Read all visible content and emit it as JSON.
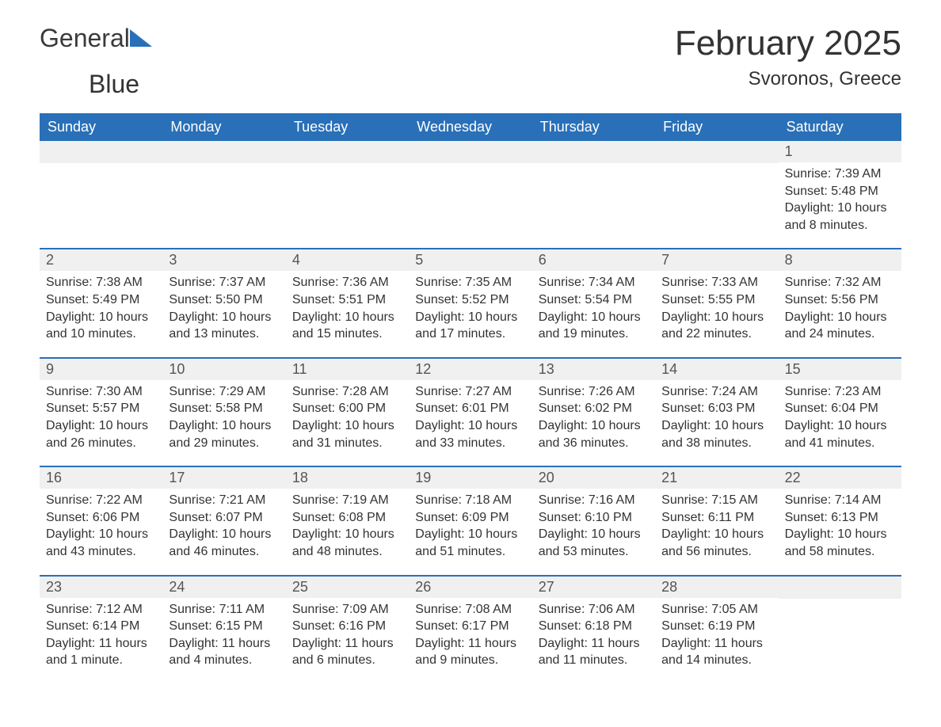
{
  "logo": {
    "text1": "General",
    "text2": "Blue"
  },
  "title": {
    "month": "February 2025",
    "location": "Svoronos, Greece"
  },
  "colors": {
    "header_bg": "#2970b8",
    "header_fg": "#ffffff",
    "daynum_bg": "#f0f0f0",
    "border": "#2970b8",
    "text": "#333333"
  },
  "weekdays": [
    "Sunday",
    "Monday",
    "Tuesday",
    "Wednesday",
    "Thursday",
    "Friday",
    "Saturday"
  ],
  "weeks": [
    [
      null,
      null,
      null,
      null,
      null,
      null,
      {
        "n": "1",
        "sunrise": "Sunrise: 7:39 AM",
        "sunset": "Sunset: 5:48 PM",
        "daylight": "Daylight: 10 hours and 8 minutes."
      }
    ],
    [
      {
        "n": "2",
        "sunrise": "Sunrise: 7:38 AM",
        "sunset": "Sunset: 5:49 PM",
        "daylight": "Daylight: 10 hours and 10 minutes."
      },
      {
        "n": "3",
        "sunrise": "Sunrise: 7:37 AM",
        "sunset": "Sunset: 5:50 PM",
        "daylight": "Daylight: 10 hours and 13 minutes."
      },
      {
        "n": "4",
        "sunrise": "Sunrise: 7:36 AM",
        "sunset": "Sunset: 5:51 PM",
        "daylight": "Daylight: 10 hours and 15 minutes."
      },
      {
        "n": "5",
        "sunrise": "Sunrise: 7:35 AM",
        "sunset": "Sunset: 5:52 PM",
        "daylight": "Daylight: 10 hours and 17 minutes."
      },
      {
        "n": "6",
        "sunrise": "Sunrise: 7:34 AM",
        "sunset": "Sunset: 5:54 PM",
        "daylight": "Daylight: 10 hours and 19 minutes."
      },
      {
        "n": "7",
        "sunrise": "Sunrise: 7:33 AM",
        "sunset": "Sunset: 5:55 PM",
        "daylight": "Daylight: 10 hours and 22 minutes."
      },
      {
        "n": "8",
        "sunrise": "Sunrise: 7:32 AM",
        "sunset": "Sunset: 5:56 PM",
        "daylight": "Daylight: 10 hours and 24 minutes."
      }
    ],
    [
      {
        "n": "9",
        "sunrise": "Sunrise: 7:30 AM",
        "sunset": "Sunset: 5:57 PM",
        "daylight": "Daylight: 10 hours and 26 minutes."
      },
      {
        "n": "10",
        "sunrise": "Sunrise: 7:29 AM",
        "sunset": "Sunset: 5:58 PM",
        "daylight": "Daylight: 10 hours and 29 minutes."
      },
      {
        "n": "11",
        "sunrise": "Sunrise: 7:28 AM",
        "sunset": "Sunset: 6:00 PM",
        "daylight": "Daylight: 10 hours and 31 minutes."
      },
      {
        "n": "12",
        "sunrise": "Sunrise: 7:27 AM",
        "sunset": "Sunset: 6:01 PM",
        "daylight": "Daylight: 10 hours and 33 minutes."
      },
      {
        "n": "13",
        "sunrise": "Sunrise: 7:26 AM",
        "sunset": "Sunset: 6:02 PM",
        "daylight": "Daylight: 10 hours and 36 minutes."
      },
      {
        "n": "14",
        "sunrise": "Sunrise: 7:24 AM",
        "sunset": "Sunset: 6:03 PM",
        "daylight": "Daylight: 10 hours and 38 minutes."
      },
      {
        "n": "15",
        "sunrise": "Sunrise: 7:23 AM",
        "sunset": "Sunset: 6:04 PM",
        "daylight": "Daylight: 10 hours and 41 minutes."
      }
    ],
    [
      {
        "n": "16",
        "sunrise": "Sunrise: 7:22 AM",
        "sunset": "Sunset: 6:06 PM",
        "daylight": "Daylight: 10 hours and 43 minutes."
      },
      {
        "n": "17",
        "sunrise": "Sunrise: 7:21 AM",
        "sunset": "Sunset: 6:07 PM",
        "daylight": "Daylight: 10 hours and 46 minutes."
      },
      {
        "n": "18",
        "sunrise": "Sunrise: 7:19 AM",
        "sunset": "Sunset: 6:08 PM",
        "daylight": "Daylight: 10 hours and 48 minutes."
      },
      {
        "n": "19",
        "sunrise": "Sunrise: 7:18 AM",
        "sunset": "Sunset: 6:09 PM",
        "daylight": "Daylight: 10 hours and 51 minutes."
      },
      {
        "n": "20",
        "sunrise": "Sunrise: 7:16 AM",
        "sunset": "Sunset: 6:10 PM",
        "daylight": "Daylight: 10 hours and 53 minutes."
      },
      {
        "n": "21",
        "sunrise": "Sunrise: 7:15 AM",
        "sunset": "Sunset: 6:11 PM",
        "daylight": "Daylight: 10 hours and 56 minutes."
      },
      {
        "n": "22",
        "sunrise": "Sunrise: 7:14 AM",
        "sunset": "Sunset: 6:13 PM",
        "daylight": "Daylight: 10 hours and 58 minutes."
      }
    ],
    [
      {
        "n": "23",
        "sunrise": "Sunrise: 7:12 AM",
        "sunset": "Sunset: 6:14 PM",
        "daylight": "Daylight: 11 hours and 1 minute."
      },
      {
        "n": "24",
        "sunrise": "Sunrise: 7:11 AM",
        "sunset": "Sunset: 6:15 PM",
        "daylight": "Daylight: 11 hours and 4 minutes."
      },
      {
        "n": "25",
        "sunrise": "Sunrise: 7:09 AM",
        "sunset": "Sunset: 6:16 PM",
        "daylight": "Daylight: 11 hours and 6 minutes."
      },
      {
        "n": "26",
        "sunrise": "Sunrise: 7:08 AM",
        "sunset": "Sunset: 6:17 PM",
        "daylight": "Daylight: 11 hours and 9 minutes."
      },
      {
        "n": "27",
        "sunrise": "Sunrise: 7:06 AM",
        "sunset": "Sunset: 6:18 PM",
        "daylight": "Daylight: 11 hours and 11 minutes."
      },
      {
        "n": "28",
        "sunrise": "Sunrise: 7:05 AM",
        "sunset": "Sunset: 6:19 PM",
        "daylight": "Daylight: 11 hours and 14 minutes."
      },
      null
    ]
  ]
}
